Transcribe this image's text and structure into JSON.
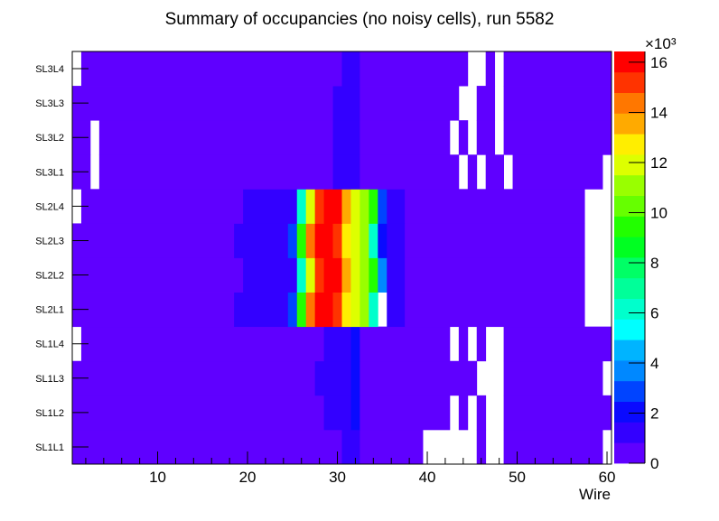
{
  "chart_data": {
    "type": "heatmap",
    "title": "Summary of occupancies (no noisy cells), run 5582",
    "xlabel": "Wire",
    "ylabel": "",
    "xlim": [
      0.5,
      60.5
    ],
    "x_bins": 60,
    "x_ticks": [
      "10",
      "20",
      "30",
      "40",
      "50",
      "60"
    ],
    "y_categories": [
      "SL1L1",
      "SL1L2",
      "SL1L3",
      "SL1L4",
      "SL2L1",
      "SL2L2",
      "SL2L3",
      "SL2L4",
      "SL3L1",
      "SL3L2",
      "SL3L3",
      "SL3L4"
    ],
    "z_units_multiplier": "×10³",
    "zlim": [
      0,
      16.43
    ],
    "z_ticks": [
      "0",
      "2",
      "4",
      "6",
      "8",
      "10",
      "12",
      "14",
      "16"
    ],
    "z_levels": 20,
    "empty_value": 0,
    "rows_note": "each row is a list of runs [first_wire, last_wire, occupancy in thousands]",
    "rows": {
      "SL1L1": [
        [
          1,
          30,
          0.4
        ],
        [
          31,
          32,
          1.2
        ],
        [
          33,
          39,
          0.4
        ],
        [
          40,
          45,
          0
        ],
        [
          46,
          46,
          0.4
        ],
        [
          47,
          48,
          0
        ],
        [
          49,
          59,
          0.4
        ],
        [
          60,
          60,
          0
        ]
      ],
      "SL1L2": [
        [
          1,
          28,
          0.4
        ],
        [
          29,
          31,
          1.2
        ],
        [
          32,
          32,
          2.0
        ],
        [
          33,
          42,
          0.4
        ],
        [
          43,
          43,
          0
        ],
        [
          44,
          44,
          0.4
        ],
        [
          45,
          45,
          0
        ],
        [
          46,
          46,
          0.4
        ],
        [
          47,
          48,
          0
        ],
        [
          49,
          60,
          0.4
        ]
      ],
      "SL1L3": [
        [
          1,
          27,
          0.4
        ],
        [
          28,
          31,
          1.2
        ],
        [
          32,
          32,
          2.0
        ],
        [
          33,
          45,
          0.4
        ],
        [
          46,
          48,
          0
        ],
        [
          49,
          59,
          0.4
        ],
        [
          60,
          60,
          0
        ]
      ],
      "SL1L4": [
        [
          1,
          1,
          0
        ],
        [
          2,
          28,
          0.4
        ],
        [
          29,
          31,
          1.2
        ],
        [
          32,
          32,
          2.0
        ],
        [
          33,
          42,
          0.4
        ],
        [
          43,
          43,
          0
        ],
        [
          44,
          44,
          0.4
        ],
        [
          45,
          45,
          0
        ],
        [
          46,
          46,
          0.4
        ],
        [
          47,
          48,
          0
        ],
        [
          49,
          60,
          0.4
        ]
      ],
      "SL2L1": [
        [
          1,
          18,
          0.4
        ],
        [
          19,
          24,
          1.2
        ],
        [
          25,
          25,
          2.9
        ],
        [
          26,
          26,
          9.5
        ],
        [
          27,
          27,
          14.4
        ],
        [
          28,
          29,
          16.0
        ],
        [
          30,
          30,
          15.2
        ],
        [
          31,
          31,
          12.7
        ],
        [
          32,
          32,
          11.9
        ],
        [
          33,
          33,
          11.1
        ],
        [
          34,
          34,
          6.2
        ],
        [
          35,
          35,
          0
        ],
        [
          36,
          37,
          1.2
        ],
        [
          38,
          57,
          0.4
        ],
        [
          58,
          60,
          0
        ]
      ],
      "SL2L2": [
        [
          1,
          19,
          0.4
        ],
        [
          20,
          25,
          1.2
        ],
        [
          26,
          26,
          6.2
        ],
        [
          27,
          27,
          11.9
        ],
        [
          28,
          28,
          15.2
        ],
        [
          29,
          30,
          16.0
        ],
        [
          31,
          31,
          13.6
        ],
        [
          32,
          32,
          11.9
        ],
        [
          33,
          33,
          11.1
        ],
        [
          34,
          34,
          9.5
        ],
        [
          35,
          35,
          3.7
        ],
        [
          36,
          37,
          1.2
        ],
        [
          38,
          57,
          0.4
        ],
        [
          58,
          60,
          0
        ]
      ],
      "SL2L3": [
        [
          1,
          18,
          0.4
        ],
        [
          19,
          24,
          1.2
        ],
        [
          25,
          25,
          2.9
        ],
        [
          26,
          26,
          9.5
        ],
        [
          27,
          27,
          14.4
        ],
        [
          28,
          29,
          16.0
        ],
        [
          30,
          30,
          15.2
        ],
        [
          31,
          31,
          12.7
        ],
        [
          32,
          32,
          11.9
        ],
        [
          33,
          33,
          11.1
        ],
        [
          34,
          34,
          6.2
        ],
        [
          35,
          35,
          2.0
        ],
        [
          36,
          37,
          1.2
        ],
        [
          38,
          57,
          0.4
        ],
        [
          58,
          60,
          0
        ]
      ],
      "SL2L4": [
        [
          1,
          1,
          0
        ],
        [
          2,
          19,
          0.4
        ],
        [
          20,
          25,
          1.2
        ],
        [
          26,
          26,
          6.2
        ],
        [
          27,
          27,
          11.9
        ],
        [
          28,
          28,
          15.2
        ],
        [
          29,
          30,
          16.0
        ],
        [
          31,
          31,
          13.6
        ],
        [
          32,
          32,
          11.9
        ],
        [
          33,
          33,
          11.1
        ],
        [
          34,
          34,
          9.5
        ],
        [
          35,
          35,
          2.9
        ],
        [
          36,
          37,
          1.2
        ],
        [
          38,
          57,
          0.4
        ],
        [
          58,
          60,
          0
        ]
      ],
      "SL3L1": [
        [
          1,
          2,
          0.4
        ],
        [
          3,
          3,
          0
        ],
        [
          4,
          29,
          0.4
        ],
        [
          30,
          32,
          1.2
        ],
        [
          33,
          43,
          0.4
        ],
        [
          44,
          44,
          0
        ],
        [
          45,
          45,
          0.4
        ],
        [
          46,
          46,
          0
        ],
        [
          47,
          48,
          0.4
        ],
        [
          49,
          49,
          0
        ],
        [
          50,
          59,
          0.4
        ],
        [
          60,
          60,
          0
        ]
      ],
      "SL3L2": [
        [
          1,
          2,
          0.4
        ],
        [
          3,
          3,
          0
        ],
        [
          4,
          29,
          0.4
        ],
        [
          30,
          32,
          1.2
        ],
        [
          33,
          42,
          0.4
        ],
        [
          43,
          43,
          0
        ],
        [
          44,
          44,
          0.4
        ],
        [
          45,
          45,
          0
        ],
        [
          46,
          47,
          0.4
        ],
        [
          48,
          48,
          0
        ],
        [
          49,
          60,
          0.4
        ]
      ],
      "SL3L3": [
        [
          1,
          29,
          0.4
        ],
        [
          30,
          32,
          1.2
        ],
        [
          33,
          43,
          0.4
        ],
        [
          44,
          45,
          0
        ],
        [
          46,
          47,
          0.4
        ],
        [
          48,
          48,
          0
        ],
        [
          49,
          60,
          0.4
        ]
      ],
      "SL3L4": [
        [
          1,
          1,
          0
        ],
        [
          2,
          30,
          0.4
        ],
        [
          31,
          32,
          1.2
        ],
        [
          33,
          44,
          0.4
        ],
        [
          45,
          46,
          0
        ],
        [
          47,
          47,
          0.4
        ],
        [
          48,
          48,
          0
        ],
        [
          49,
          60,
          0.4
        ]
      ]
    },
    "palette": [
      "#5f00ff",
      "#3300ff",
      "#0a0aff",
      "#0044ff",
      "#0088ff",
      "#00b4ff",
      "#00ffff",
      "#00ffcc",
      "#00ff99",
      "#00ff66",
      "#00ff22",
      "#22ff00",
      "#66ff00",
      "#99ff00",
      "#ddff00",
      "#ffee00",
      "#ffaa00",
      "#ff7700",
      "#ff3300",
      "#ff0000"
    ],
    "grid": false,
    "legend": "colorbar-right"
  }
}
